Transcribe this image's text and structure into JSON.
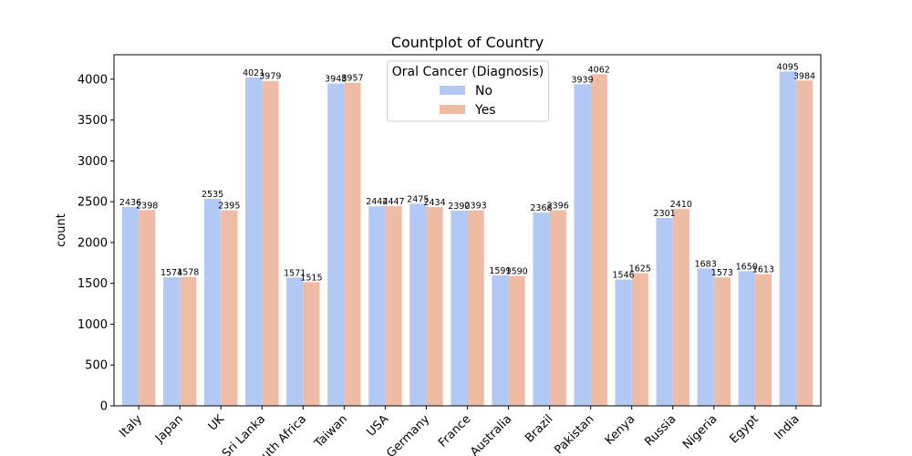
{
  "chart_data": {
    "type": "bar",
    "title": "Countplot of Country",
    "xlabel": "",
    "ylabel": "count",
    "ylim": [
      0,
      4300
    ],
    "yticks": [
      0,
      500,
      1000,
      1500,
      2000,
      2500,
      3000,
      3500,
      4000
    ],
    "categories": [
      "Italy",
      "Japan",
      "UK",
      "Sri Lanka",
      "South Africa",
      "Taiwan",
      "USA",
      "Germany",
      "France",
      "Australia",
      "Brazil",
      "Pakistan",
      "Kenya",
      "Russia",
      "Nigeria",
      "Egypt",
      "India"
    ],
    "series": [
      {
        "name": "No",
        "color": "#b3c9f5",
        "values": [
          2436,
          1574,
          2535,
          4021,
          1571,
          3948,
          2444,
          2475,
          2390,
          1599,
          2368,
          3939,
          1546,
          2301,
          1683,
          1650,
          4095
        ]
      },
      {
        "name": "Yes",
        "color": "#eebba4",
        "values": [
          2398,
          1578,
          2395,
          3979,
          1515,
          3957,
          2447,
          2434,
          2393,
          1590,
          2396,
          4062,
          1625,
          2410,
          1573,
          1613,
          3984
        ]
      }
    ],
    "legend": {
      "title": "Oral Cancer (Diagnosis)",
      "placement": "top-center"
    },
    "grid": false
  }
}
